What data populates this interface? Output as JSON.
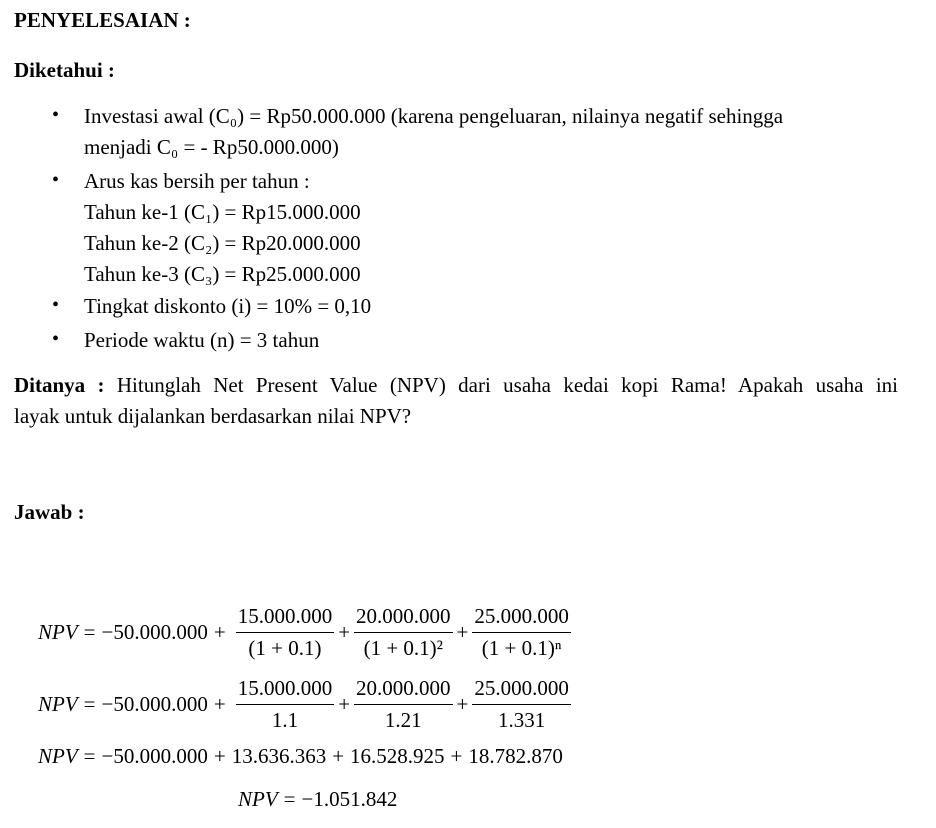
{
  "heading": "PENYELESAIAN :",
  "known_label": "Diketahui :",
  "bullets": {
    "b1_line1": "Investasi awal (C₀) = Rp50.000.000 (karena pengeluaran, nilainya negatif sehingga",
    "b1_line2": "menjadi C₀ = - Rp50.000.000)",
    "b2": "Arus kas bersih per tahun :",
    "b2_sub1": "Tahun ke-1 (C₁) = Rp15.000.000",
    "b2_sub2": "Tahun ke-2 (C₂) = Rp20.000.000",
    "b2_sub3": "Tahun ke-3 (C₃) = Rp25.000.000",
    "b3": "Tingkat diskonto (i) = 10% = 0,10",
    "b4": "Periode waktu (n) = 3 tahun",
    "bullet_symbol": "•"
  },
  "asked": {
    "label": "Ditanya :",
    "line1": " Hitunglah Net Present Value (NPV) dari usaha kedai kopi Rama! Apakah usaha ini",
    "line2": "layak untuk dijalankan berdasarkan nilai NPV?"
  },
  "answer_label": "Jawab :",
  "equations": {
    "npv": "NPV",
    "eq": "=",
    "plus": "+",
    "c0": "−50.000.000",
    "n1": "15.000.000",
    "n2": "20.000.000",
    "n3": "25.000.000",
    "d1a": "(1 + 0.1)",
    "d2a": "(1 + 0.1)²",
    "d3a": "(1 + 0.1)ⁿ",
    "d1b": "1.1",
    "d2b": "1.21",
    "d3b": "1.331",
    "pv1": "13.636.363",
    "pv2": "16.528.925",
    "pv3": "18.782.870",
    "result": "−1.051.842"
  }
}
